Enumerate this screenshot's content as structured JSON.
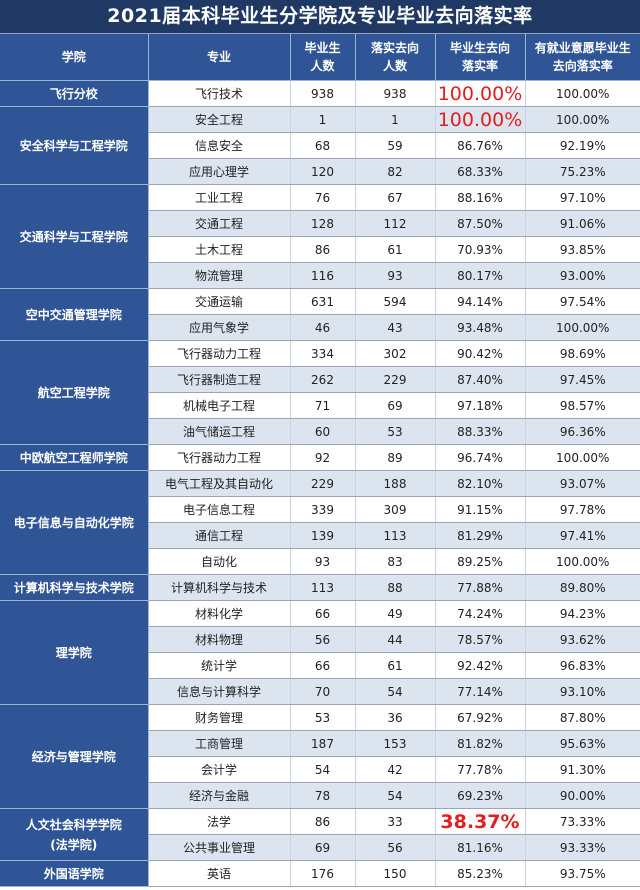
{
  "title": "2021届本科毕业生分学院及专业毕业去向落实率",
  "headers": {
    "college": "学院",
    "major": "专业",
    "graduates_l1": "毕业生",
    "graduates_l2": "人数",
    "placed_l1": "落实去向",
    "placed_l2": "人数",
    "rate_l1": "毕业生去向",
    "rate_l2": "落实率",
    "willing_rate_l1": "有就业意愿毕业生",
    "willing_rate_l2": "去向落实率"
  },
  "highlight_color": "#e02020",
  "colleges": [
    {
      "name": "飞行分校",
      "name_l2": "",
      "rows": [
        {
          "major": "飞行技术",
          "graduates": "938",
          "placed": "938",
          "rate": "100.00%",
          "willing_rate": "100.00%"
        }
      ]
    },
    {
      "name": "安全科学与工程学院",
      "name_l2": "",
      "rows": [
        {
          "major": "安全工程",
          "graduates": "1",
          "placed": "1",
          "rate": "100.00%",
          "willing_rate": "100.00%"
        },
        {
          "major": "信息安全",
          "graduates": "68",
          "placed": "59",
          "rate": "86.76%",
          "willing_rate": "92.19%"
        },
        {
          "major": "应用心理学",
          "graduates": "120",
          "placed": "82",
          "rate": "68.33%",
          "willing_rate": "75.23%"
        }
      ]
    },
    {
      "name": "交通科学与工程学院",
      "name_l2": "",
      "rows": [
        {
          "major": "工业工程",
          "graduates": "76",
          "placed": "67",
          "rate": "88.16%",
          "willing_rate": "97.10%"
        },
        {
          "major": "交通工程",
          "graduates": "128",
          "placed": "112",
          "rate": "87.50%",
          "willing_rate": "91.06%"
        },
        {
          "major": "土木工程",
          "graduates": "86",
          "placed": "61",
          "rate": "70.93%",
          "willing_rate": "93.85%"
        },
        {
          "major": "物流管理",
          "graduates": "116",
          "placed": "93",
          "rate": "80.17%",
          "willing_rate": "93.00%"
        }
      ]
    },
    {
      "name": "空中交通管理学院",
      "name_l2": "",
      "rows": [
        {
          "major": "交通运输",
          "graduates": "631",
          "placed": "594",
          "rate": "94.14%",
          "willing_rate": "97.54%"
        },
        {
          "major": "应用气象学",
          "graduates": "46",
          "placed": "43",
          "rate": "93.48%",
          "willing_rate": "100.00%"
        }
      ]
    },
    {
      "name": "航空工程学院",
      "name_l2": "",
      "rows": [
        {
          "major": "飞行器动力工程",
          "graduates": "334",
          "placed": "302",
          "rate": "90.42%",
          "willing_rate": "98.69%"
        },
        {
          "major": "飞行器制造工程",
          "graduates": "262",
          "placed": "229",
          "rate": "87.40%",
          "willing_rate": "97.45%"
        },
        {
          "major": "机械电子工程",
          "graduates": "71",
          "placed": "69",
          "rate": "97.18%",
          "willing_rate": "98.57%"
        },
        {
          "major": "油气储运工程",
          "graduates": "60",
          "placed": "53",
          "rate": "88.33%",
          "willing_rate": "96.36%"
        }
      ]
    },
    {
      "name": "中欧航空工程师学院",
      "name_l2": "",
      "rows": [
        {
          "major": "飞行器动力工程",
          "graduates": "92",
          "placed": "89",
          "rate": "96.74%",
          "willing_rate": "100.00%"
        }
      ]
    },
    {
      "name": "电子信息与自动化学院",
      "name_l2": "",
      "rows": [
        {
          "major": "电气工程及其自动化",
          "graduates": "229",
          "placed": "188",
          "rate": "82.10%",
          "willing_rate": "93.07%"
        },
        {
          "major": "电子信息工程",
          "graduates": "339",
          "placed": "309",
          "rate": "91.15%",
          "willing_rate": "97.78%"
        },
        {
          "major": "通信工程",
          "graduates": "139",
          "placed": "113",
          "rate": "81.29%",
          "willing_rate": "97.41%"
        },
        {
          "major": "自动化",
          "graduates": "93",
          "placed": "83",
          "rate": "89.25%",
          "willing_rate": "100.00%"
        }
      ]
    },
    {
      "name": "计算机科学与技术学院",
      "name_l2": "",
      "rows": [
        {
          "major": "计算机科学与技术",
          "graduates": "113",
          "placed": "88",
          "rate": "77.88%",
          "willing_rate": "89.80%"
        }
      ]
    },
    {
      "name": "理学院",
      "name_l2": "",
      "rows": [
        {
          "major": "材料化学",
          "graduates": "66",
          "placed": "49",
          "rate": "74.24%",
          "willing_rate": "94.23%"
        },
        {
          "major": "材料物理",
          "graduates": "56",
          "placed": "44",
          "rate": "78.57%",
          "willing_rate": "93.62%"
        },
        {
          "major": "统计学",
          "graduates": "66",
          "placed": "61",
          "rate": "92.42%",
          "willing_rate": "96.83%"
        },
        {
          "major": "信息与计算科学",
          "graduates": "70",
          "placed": "54",
          "rate": "77.14%",
          "willing_rate": "93.10%"
        }
      ]
    },
    {
      "name": "经济与管理学院",
      "name_l2": "",
      "rows": [
        {
          "major": "财务管理",
          "graduates": "53",
          "placed": "36",
          "rate": "67.92%",
          "willing_rate": "87.80%"
        },
        {
          "major": "工商管理",
          "graduates": "187",
          "placed": "153",
          "rate": "81.82%",
          "willing_rate": "95.63%"
        },
        {
          "major": "会计学",
          "graduates": "54",
          "placed": "42",
          "rate": "77.78%",
          "willing_rate": "91.30%"
        },
        {
          "major": "经济与金融",
          "graduates": "78",
          "placed": "54",
          "rate": "69.23%",
          "willing_rate": "90.00%"
        }
      ]
    },
    {
      "name": "人文社会科学学院",
      "name_l2": "(法学院)",
      "rows": [
        {
          "major": "法学",
          "graduates": "86",
          "placed": "33",
          "rate": "38.37%",
          "willing_rate": "73.33%"
        },
        {
          "major": "公共事业管理",
          "graduates": "69",
          "placed": "56",
          "rate": "81.16%",
          "willing_rate": "93.33%"
        }
      ]
    },
    {
      "name": "外国语学院",
      "name_l2": "",
      "rows": [
        {
          "major": "英语",
          "graduates": "176",
          "placed": "150",
          "rate": "85.23%",
          "willing_rate": "93.75%"
        }
      ]
    }
  ]
}
